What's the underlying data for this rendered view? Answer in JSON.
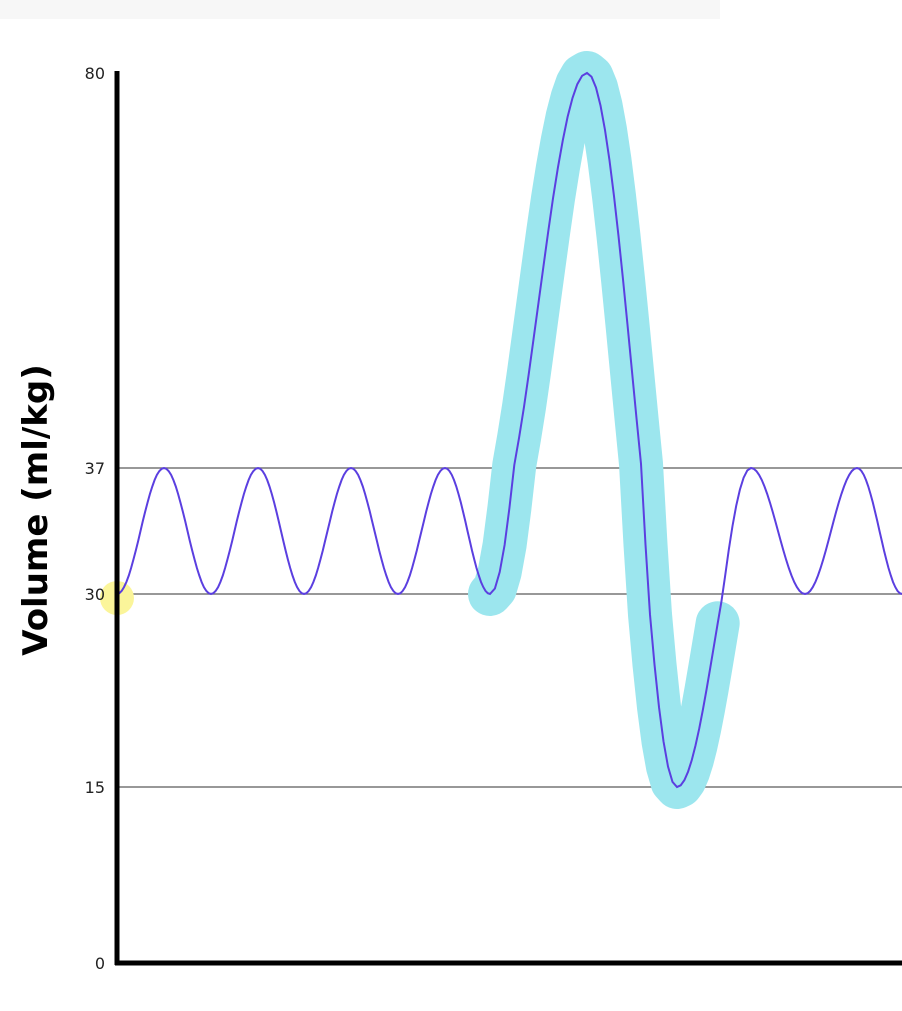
{
  "chart_data": {
    "type": "line",
    "title": "",
    "xlabel": "",
    "ylabel": "Volume (ml/kg)",
    "yticks": [
      0,
      15,
      30,
      37,
      80
    ],
    "ytick_labels": [
      "0",
      "15",
      "30",
      "37",
      "80"
    ],
    "reference_lines": [
      15,
      30,
      37
    ],
    "grid": false,
    "series": [
      {
        "values": [
          30,
          37,
          30,
          37,
          30,
          37,
          30,
          37,
          30,
          80,
          15,
          37,
          30,
          37,
          30
        ]
      }
    ],
    "highlight": {
      "color": "#9ce6ee",
      "range_values": [
        30,
        80,
        15,
        30
      ]
    },
    "marker": {
      "value": 30,
      "color": "#fbf59a"
    },
    "colors": {
      "line": "#5b3fe0",
      "axis": "#000000",
      "reference": "#777777"
    }
  }
}
